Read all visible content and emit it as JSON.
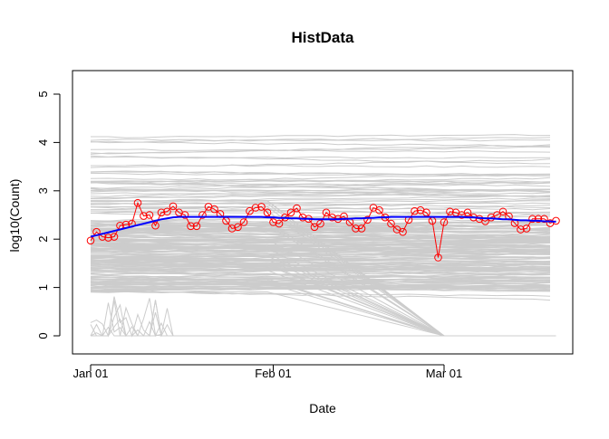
{
  "chart_data": {
    "type": "line",
    "title": "HistData",
    "xlabel": "Date",
    "ylabel": "log10(Count)",
    "ylim": [
      0,
      5
    ],
    "yticks": [
      "0",
      "1",
      "2",
      "3",
      "4",
      "5"
    ],
    "xticks": [
      {
        "date": "2016-01-01",
        "label": "Jan 01"
      },
      {
        "date": "2016-02-01",
        "label": "Feb 01"
      },
      {
        "date": "2016-03-01",
        "label": "Mar 01"
      }
    ],
    "x_start": "2016-01-01",
    "grid": false,
    "series": [
      {
        "role": "observed",
        "color": "#ff0000",
        "marker": "open-circle",
        "values": [
          1.97,
          2.15,
          2.05,
          2.03,
          2.05,
          2.28,
          2.3,
          2.32,
          2.75,
          2.48,
          2.5,
          2.28,
          2.55,
          2.57,
          2.68,
          2.55,
          2.5,
          2.27,
          2.27,
          2.5,
          2.67,
          2.62,
          2.52,
          2.38,
          2.22,
          2.25,
          2.35,
          2.58,
          2.65,
          2.67,
          2.55,
          2.35,
          2.32,
          2.45,
          2.55,
          2.64,
          2.45,
          2.42,
          2.25,
          2.32,
          2.55,
          2.45,
          2.42,
          2.47,
          2.35,
          2.22,
          2.22,
          2.4,
          2.65,
          2.6,
          2.45,
          2.32,
          2.2,
          2.15,
          2.4,
          2.58,
          2.6,
          2.55,
          2.38,
          1.62,
          2.35,
          2.57,
          2.55,
          2.5,
          2.55,
          2.45,
          2.42,
          2.37,
          2.45,
          2.5,
          2.57,
          2.47,
          2.33,
          2.2,
          2.22,
          2.42,
          2.42,
          2.42,
          2.33,
          2.38
        ]
      },
      {
        "role": "smooth",
        "color": "#0000ff",
        "values": [
          2.05,
          2.08,
          2.11,
          2.14,
          2.17,
          2.2,
          2.23,
          2.26,
          2.29,
          2.32,
          2.35,
          2.38,
          2.41,
          2.43,
          2.45,
          2.46,
          2.46,
          2.46,
          2.46,
          2.46,
          2.46,
          2.46,
          2.46,
          2.46,
          2.46,
          2.46,
          2.46,
          2.46,
          2.46,
          2.46,
          2.45,
          2.45,
          2.44,
          2.44,
          2.43,
          2.43,
          2.42,
          2.42,
          2.41,
          2.41,
          2.41,
          2.41,
          2.41,
          2.42,
          2.42,
          2.43,
          2.43,
          2.44,
          2.44,
          2.45,
          2.45,
          2.46,
          2.46,
          2.46,
          2.46,
          2.46,
          2.46,
          2.46,
          2.46,
          2.46,
          2.46,
          2.46,
          2.46,
          2.46,
          2.45,
          2.45,
          2.44,
          2.43,
          2.43,
          2.42,
          2.41,
          2.41,
          2.4,
          2.39,
          2.39,
          2.38,
          2.38,
          2.37,
          2.37,
          2.36
        ]
      }
    ],
    "background_series_color": "#cccccc"
  }
}
